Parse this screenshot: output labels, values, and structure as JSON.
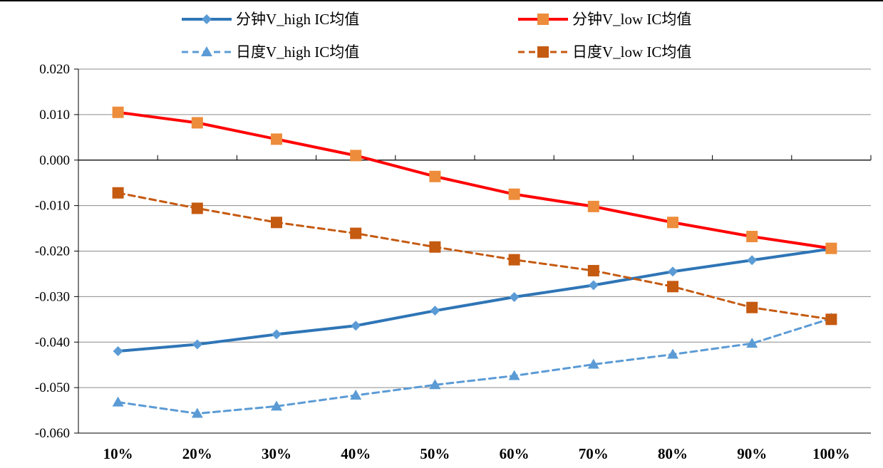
{
  "chart_data": {
    "type": "line",
    "title": "",
    "xlabel": "",
    "ylabel": "",
    "categories": [
      "10%",
      "20%",
      "30%",
      "40%",
      "50%",
      "60%",
      "70%",
      "80%",
      "90%",
      "100%"
    ],
    "ylim": [
      -0.06,
      0.02
    ],
    "yticks": [
      0.02,
      0.01,
      0.0,
      -0.01,
      -0.02,
      -0.03,
      -0.04,
      -0.05,
      -0.06
    ],
    "ytick_labels": [
      "0.020",
      "0.010",
      "0.000",
      "-0.010",
      "-0.020",
      "-0.030",
      "-0.040",
      "-0.050",
      "-0.060"
    ],
    "grid": true,
    "legend_position": "top",
    "series": [
      {
        "name": "分钟V_high IC均值",
        "values": [
          -0.042,
          -0.0405,
          -0.0383,
          -0.0364,
          -0.0331,
          -0.0301,
          -0.0275,
          -0.0245,
          -0.022,
          -0.0195
        ],
        "color": "#2e75b6",
        "line_style": "solid",
        "marker": "diamond",
        "marker_color": "#5b9bd5"
      },
      {
        "name": "分钟V_low IC均值",
        "values": [
          0.0105,
          0.0082,
          0.0046,
          0.001,
          -0.0036,
          -0.0075,
          -0.0102,
          -0.0137,
          -0.0168,
          -0.0194
        ],
        "color": "#ff0000",
        "line_style": "solid",
        "marker": "square",
        "marker_color": "#ed8c3a"
      },
      {
        "name": "日度V_high IC均值",
        "values": [
          -0.0532,
          -0.0557,
          -0.0541,
          -0.0517,
          -0.0494,
          -0.0474,
          -0.0449,
          -0.0427,
          -0.0403,
          -0.0348
        ],
        "color": "#5b9bd5",
        "line_style": "dashed",
        "marker": "triangle",
        "marker_color": "#5b9bd5"
      },
      {
        "name": "日度V_low IC均值",
        "values": [
          -0.0072,
          -0.0106,
          -0.0137,
          -0.0161,
          -0.0191,
          -0.0219,
          -0.0243,
          -0.0278,
          -0.0324,
          -0.035
        ],
        "color": "#c55a11",
        "line_style": "dashed",
        "marker": "square",
        "marker_color": "#c55a11"
      }
    ]
  }
}
